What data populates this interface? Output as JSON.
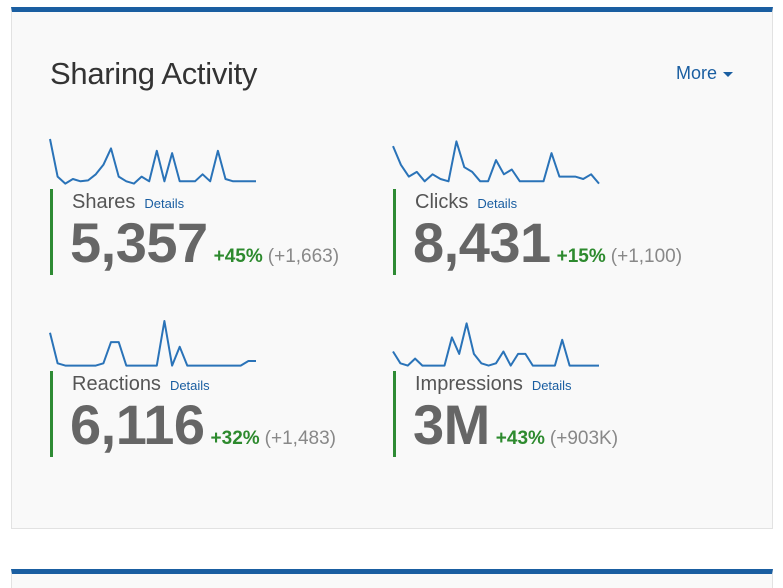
{
  "panel": {
    "title": "Sharing Activity",
    "more_label": "More"
  },
  "colors": {
    "accent": "#1a5ea1",
    "positive": "#2d8a2e",
    "sparkline": "#2a73b8"
  },
  "metrics": [
    {
      "label": "Shares",
      "details_label": "Details",
      "value": "5,357",
      "change_pct": "+45%",
      "change_abs": "(+1,663)",
      "sparkline": [
        1.0,
        0.2,
        0.05,
        0.15,
        0.1,
        0.12,
        0.25,
        0.45,
        0.8,
        0.2,
        0.1,
        0.05,
        0.2,
        0.1,
        0.75,
        0.1,
        0.7,
        0.1,
        0.1,
        0.1,
        0.25,
        0.1,
        0.75,
        0.15,
        0.1,
        0.1,
        0.1,
        0.1
      ]
    },
    {
      "label": "Clicks",
      "details_label": "Details",
      "value": "8,431",
      "change_pct": "+15%",
      "change_abs": "(+1,100)",
      "sparkline": [
        0.85,
        0.45,
        0.2,
        0.3,
        0.1,
        0.25,
        0.15,
        0.1,
        0.95,
        0.4,
        0.3,
        0.1,
        0.1,
        0.55,
        0.25,
        0.35,
        0.1,
        0.1,
        0.1,
        0.1,
        0.7,
        0.2,
        0.2,
        0.2,
        0.15,
        0.25,
        0.05
      ]
    },
    {
      "label": "Reactions",
      "details_label": "Details",
      "value": "6,116",
      "change_pct": "+32%",
      "change_abs": "(+1,483)",
      "sparkline": [
        0.75,
        0.1,
        0.05,
        0.05,
        0.05,
        0.05,
        0.05,
        0.1,
        0.55,
        0.55,
        0.05,
        0.05,
        0.05,
        0.05,
        0.05,
        1.0,
        0.05,
        0.45,
        0.05,
        0.05,
        0.05,
        0.05,
        0.05,
        0.05,
        0.05,
        0.05,
        0.15,
        0.15
      ]
    },
    {
      "label": "Impressions",
      "details_label": "Details",
      "value": "3M",
      "change_pct": "+43%",
      "change_abs": "(+903K)",
      "sparkline": [
        0.35,
        0.1,
        0.05,
        0.2,
        0.05,
        0.05,
        0.05,
        0.05,
        0.65,
        0.3,
        0.95,
        0.3,
        0.1,
        0.05,
        0.1,
        0.35,
        0.05,
        0.3,
        0.3,
        0.05,
        0.05,
        0.05,
        0.05,
        0.6,
        0.05,
        0.05,
        0.05,
        0.05,
        0.05
      ]
    }
  ]
}
